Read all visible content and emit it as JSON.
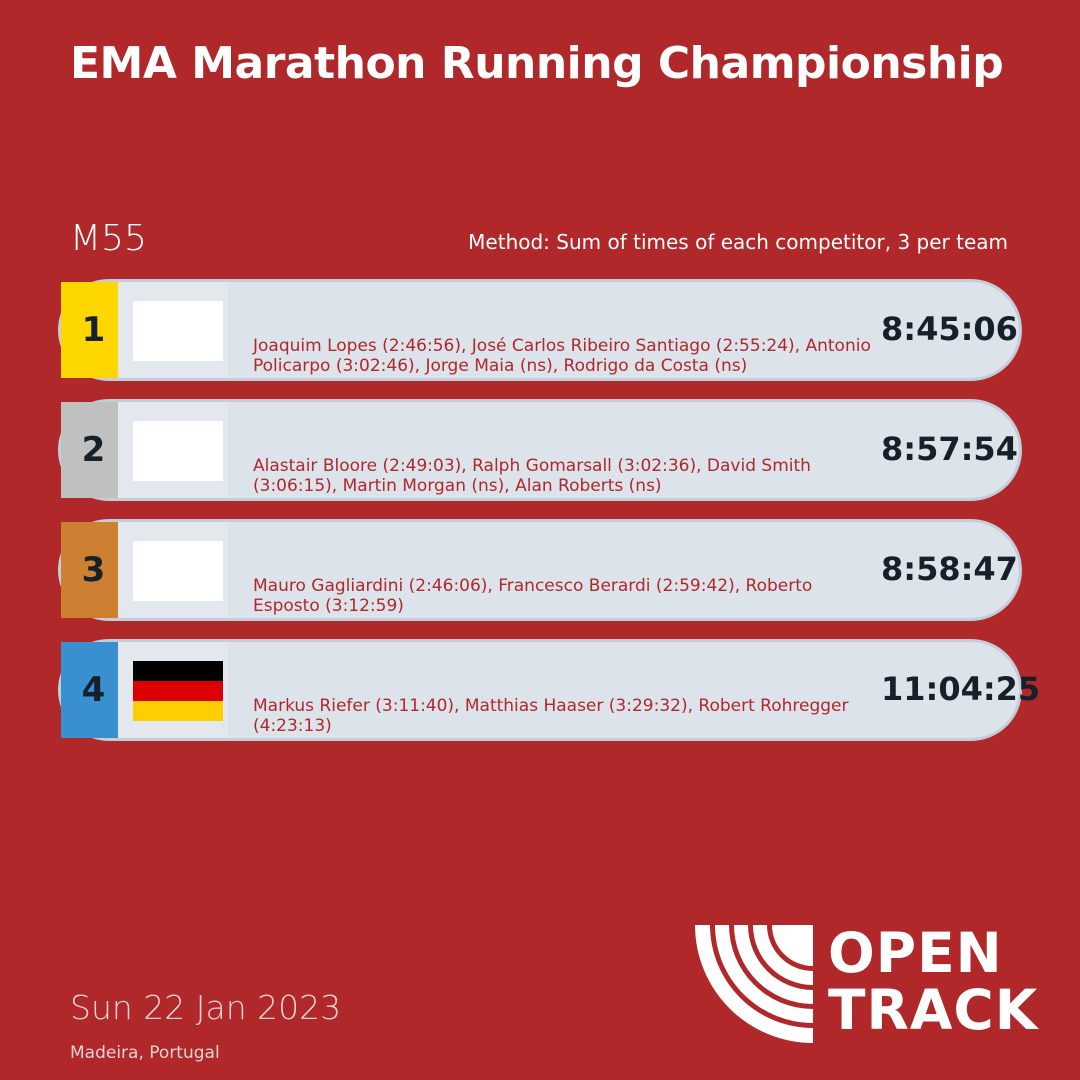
{
  "title": "EMA Marathon Running Championship",
  "category": "M55",
  "method": "Method: Sum of times of each competitor, 3 per team",
  "teams": [
    {
      "rank": "1",
      "color": "#ffd700",
      "flag": "blank",
      "names": "Joaquim Lopes (2:46:56), José Carlos Ribeiro Santiago (2:55:24), Antonio Policarpo (3:02:46), Jorge Maia (ns), Rodrigo da Costa (ns)",
      "time": "8:45:06"
    },
    {
      "rank": "2",
      "color": "#c0c0c0",
      "flag": "blank",
      "names": "Alastair Bloore (2:49:03), Ralph Gomarsall (3:02:36), David Smith (3:06:15), Martin Morgan (ns), Alan Roberts (ns)",
      "time": "8:57:54"
    },
    {
      "rank": "3",
      "color": "#cd7f32",
      "flag": "blank",
      "names": "Mauro Gagliardini (2:46:06), Francesco Berardi (2:59:42), Roberto Esposto (3:12:59)",
      "time": "8:58:47"
    },
    {
      "rank": "4",
      "color": "#3a8fce",
      "flag": "germany",
      "names": "Markus Riefer (3:11:40), Matthias Haaser (3:29:32), Robert Rohregger (4:23:13)",
      "time": "11:04:25"
    }
  ],
  "date": "Sun 22 Jan 2023",
  "location": "Madeira, Portugal",
  "logo": {
    "line1": "OPEN",
    "line2": "TRACK"
  }
}
